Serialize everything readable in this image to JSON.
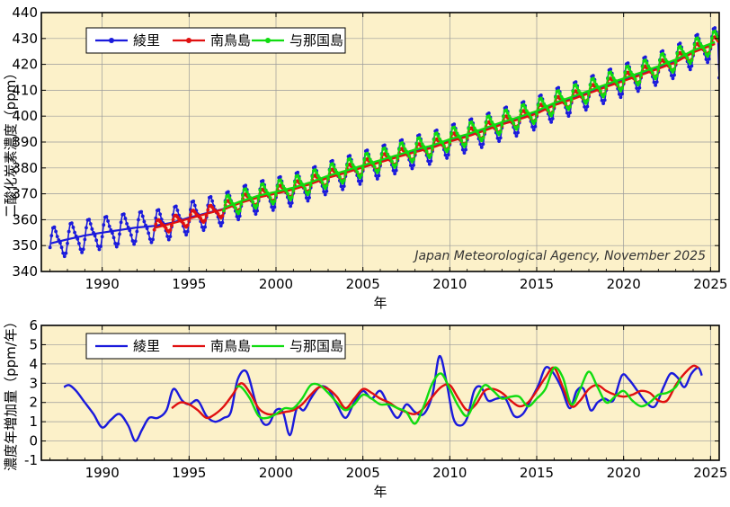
{
  "chart_data": [
    {
      "type": "line",
      "title": "",
      "xlabel": "年",
      "ylabel": "二酸化炭素濃度（ppm）",
      "xlim": [
        1986.5,
        2025.5
      ],
      "ylim": [
        340,
        440
      ],
      "xticks": [
        1990,
        1995,
        2000,
        2005,
        2010,
        2015,
        2020,
        2025
      ],
      "yticks": [
        340,
        350,
        360,
        370,
        380,
        390,
        400,
        410,
        420,
        430,
        440
      ],
      "grid": true,
      "legend_position": "top-left",
      "credit": "Japan Meteorological Agency, November 2025",
      "series": [
        {
          "name": "綾里",
          "color": "#1a1adc",
          "markers": true,
          "trend_start": 1987.0,
          "trend_end": 2025.3,
          "trend_values": [
            [
              1987,
              350.8
            ],
            [
              1988,
              352.4
            ],
            [
              1989,
              353.9
            ],
            [
              1990,
              355.0
            ],
            [
              1991,
              356.0
            ],
            [
              1992,
              357.0
            ],
            [
              1993,
              357.6
            ],
            [
              1994,
              358.8
            ],
            [
              1995,
              360.8
            ],
            [
              1996,
              362.5
            ],
            [
              1997,
              364.2
            ],
            [
              1998,
              366.8
            ],
            [
              1999,
              368.8
            ],
            [
              2000,
              370.2
            ],
            [
              2001,
              371.8
            ],
            [
              2002,
              373.9
            ],
            [
              2003,
              376.4
            ],
            [
              2004,
              378.3
            ],
            [
              2005,
              380.4
            ],
            [
              2006,
              382.4
            ],
            [
              2007,
              384.4
            ],
            [
              2008,
              386.4
            ],
            [
              2009,
              388.0
            ],
            [
              2010,
              390.5
            ],
            [
              2011,
              392.4
            ],
            [
              2012,
              394.6
            ],
            [
              2013,
              397.0
            ],
            [
              2014,
              399.0
            ],
            [
              2015,
              401.4
            ],
            [
              2016,
              404.5
            ],
            [
              2017,
              406.7
            ],
            [
              2018,
              409.1
            ],
            [
              2019,
              411.6
            ],
            [
              2020,
              414.0
            ],
            [
              2021,
              416.3
            ],
            [
              2022,
              418.6
            ],
            [
              2023,
              421.3
            ],
            [
              2024,
              424.9
            ],
            [
              2025,
              427.5
            ]
          ],
          "seasonal_amplitude": 6.5,
          "data_end": 2025.6
        },
        {
          "name": "南鳥島",
          "color": "#e01010",
          "markers": true,
          "trend_start": 1993.0,
          "trend_end": 2025.3,
          "trend_values": [
            [
              1993,
              356.8
            ],
            [
              1994,
              358.5
            ],
            [
              1995,
              360.4
            ],
            [
              1996,
              362.3
            ],
            [
              1997,
              364.0
            ],
            [
              1998,
              366.6
            ],
            [
              1999,
              368.6
            ],
            [
              2000,
              370.1
            ],
            [
              2001,
              371.7
            ],
            [
              2002,
              373.8
            ],
            [
              2003,
              376.2
            ],
            [
              2004,
              378.1
            ],
            [
              2005,
              380.2
            ],
            [
              2006,
              382.2
            ],
            [
              2007,
              384.2
            ],
            [
              2008,
              386.1
            ],
            [
              2009,
              387.8
            ],
            [
              2010,
              390.2
            ],
            [
              2011,
              392.1
            ],
            [
              2012,
              394.4
            ],
            [
              2013,
              396.8
            ],
            [
              2014,
              398.8
            ],
            [
              2015,
              401.0
            ],
            [
              2016,
              404.2
            ],
            [
              2017,
              406.4
            ],
            [
              2018,
              408.8
            ],
            [
              2019,
              411.3
            ],
            [
              2020,
              413.6
            ],
            [
              2021,
              415.9
            ],
            [
              2022,
              418.3
            ],
            [
              2023,
              420.8
            ],
            [
              2024,
              424.6
            ],
            [
              2025,
              427.2
            ]
          ],
          "seasonal_amplitude": 3.0,
          "data_end": 2025.5
        },
        {
          "name": "与那国島",
          "color": "#10dc10",
          "markers": true,
          "trend_start": 1997.0,
          "trend_end": 2025.3,
          "trend_values": [
            [
              1997,
              364.6
            ],
            [
              1998,
              367.2
            ],
            [
              1999,
              369.3
            ],
            [
              2000,
              370.8
            ],
            [
              2001,
              372.4
            ],
            [
              2002,
              374.5
            ],
            [
              2003,
              377.0
            ],
            [
              2004,
              378.9
            ],
            [
              2005,
              381.0
            ],
            [
              2006,
              383.0
            ],
            [
              2007,
              385.0
            ],
            [
              2008,
              387.1
            ],
            [
              2009,
              388.7
            ],
            [
              2010,
              391.1
            ],
            [
              2011,
              393.0
            ],
            [
              2012,
              395.3
            ],
            [
              2013,
              397.7
            ],
            [
              2014,
              399.7
            ],
            [
              2015,
              402.0
            ],
            [
              2016,
              405.1
            ],
            [
              2017,
              407.4
            ],
            [
              2018,
              409.8
            ],
            [
              2019,
              412.3
            ],
            [
              2020,
              414.6
            ],
            [
              2021,
              416.9
            ],
            [
              2022,
              419.3
            ],
            [
              2023,
              421.9
            ],
            [
              2024,
              425.4
            ],
            [
              2025,
              428.0
            ]
          ],
          "seasonal_amplitude": 4.5,
          "data_end": 2025.5
        }
      ]
    },
    {
      "type": "line",
      "title": "",
      "xlabel": "年",
      "ylabel": "濃度年増加量（ppm/年）",
      "xlim": [
        1986.5,
        2025.5
      ],
      "ylim": [
        -1,
        6
      ],
      "xticks": [
        1990,
        1995,
        2000,
        2005,
        2010,
        2015,
        2020,
        2025
      ],
      "yticks": [
        -1,
        0,
        1,
        2,
        3,
        4,
        5,
        6
      ],
      "grid": true,
      "legend_position": "top-left",
      "series": [
        {
          "name": "綾里",
          "color": "#1a1adc",
          "x": [
            1987.8,
            1988.1,
            1988.5,
            1989.0,
            1989.5,
            1990.0,
            1990.5,
            1991.0,
            1991.5,
            1991.9,
            1992.3,
            1992.7,
            1993.2,
            1993.7,
            1994.1,
            1994.6,
            1995.0,
            1995.5,
            1996.0,
            1996.5,
            1997.0,
            1997.4,
            1997.8,
            1998.3,
            1998.8,
            1999.2,
            1999.6,
            2000.0,
            2000.4,
            2000.8,
            2001.2,
            2001.6,
            2002.0,
            2002.5,
            2003.0,
            2003.5,
            2004.0,
            2004.5,
            2005.0,
            2005.5,
            2006.0,
            2006.5,
            2007.0,
            2007.5,
            2008.0,
            2008.5,
            2009.0,
            2009.4,
            2009.8,
            2010.2,
            2010.6,
            2011.0,
            2011.4,
            2011.8,
            2012.2,
            2012.7,
            2013.2,
            2013.7,
            2014.2,
            2014.7,
            2015.1,
            2015.5,
            2015.9,
            2016.4,
            2016.9,
            2017.3,
            2017.7,
            2018.1,
            2018.5,
            2018.9,
            2019.4,
            2019.9,
            2020.3,
            2020.8,
            2021.3,
            2021.8,
            2022.3,
            2022.7,
            2023.1,
            2023.5,
            2023.9,
            2024.3,
            2024.5
          ],
          "values": [
            2.8,
            2.9,
            2.6,
            2.0,
            1.4,
            0.7,
            1.1,
            1.4,
            0.8,
            0.0,
            0.6,
            1.2,
            1.2,
            1.6,
            2.7,
            2.1,
            1.9,
            2.1,
            1.3,
            1.0,
            1.2,
            1.5,
            3.2,
            3.6,
            2.1,
            1.0,
            0.9,
            1.6,
            1.5,
            0.3,
            1.7,
            1.6,
            2.2,
            2.8,
            2.7,
            1.9,
            1.2,
            2.0,
            2.6,
            2.2,
            2.6,
            1.8,
            1.2,
            1.9,
            1.5,
            1.4,
            2.4,
            4.4,
            3.1,
            1.2,
            0.8,
            1.2,
            2.6,
            2.8,
            2.1,
            2.2,
            2.2,
            1.3,
            1.4,
            2.2,
            2.9,
            3.8,
            3.6,
            2.8,
            1.7,
            2.6,
            2.7,
            1.6,
            2.0,
            2.2,
            2.1,
            3.4,
            3.2,
            2.6,
            2.0,
            1.8,
            2.8,
            3.5,
            3.3,
            2.8,
            3.5,
            3.8,
            3.4
          ]
        },
        {
          "name": "南鳥島",
          "color": "#e01010",
          "x": [
            1994.0,
            1994.5,
            1995.0,
            1995.5,
            1996.0,
            1996.5,
            1997.0,
            1997.5,
            1998.0,
            1998.5,
            1999.0,
            1999.5,
            2000.0,
            2000.5,
            2001.0,
            2001.5,
            2002.0,
            2002.5,
            2003.0,
            2003.5,
            2004.0,
            2004.5,
            2005.0,
            2005.5,
            2006.0,
            2006.5,
            2007.0,
            2007.5,
            2008.0,
            2008.5,
            2009.0,
            2009.5,
            2010.0,
            2010.5,
            2011.0,
            2011.5,
            2012.0,
            2012.5,
            2013.0,
            2013.5,
            2014.0,
            2014.5,
            2015.0,
            2015.5,
            2016.0,
            2016.5,
            2017.0,
            2017.5,
            2018.0,
            2018.5,
            2019.0,
            2019.5,
            2020.0,
            2020.5,
            2021.0,
            2021.5,
            2022.0,
            2022.5,
            2023.0,
            2023.5,
            2024.0,
            2024.3
          ],
          "values": [
            1.7,
            2.0,
            1.9,
            1.6,
            1.2,
            1.4,
            1.8,
            2.4,
            3.0,
            2.5,
            1.7,
            1.4,
            1.4,
            1.5,
            1.6,
            1.9,
            2.4,
            2.8,
            2.7,
            2.3,
            1.7,
            2.2,
            2.7,
            2.5,
            2.2,
            2.0,
            1.7,
            1.5,
            1.4,
            1.7,
            2.3,
            2.8,
            2.9,
            2.2,
            1.6,
            1.9,
            2.6,
            2.7,
            2.5,
            2.1,
            1.8,
            2.0,
            2.6,
            3.3,
            3.8,
            2.8,
            1.8,
            2.1,
            2.7,
            2.9,
            2.6,
            2.4,
            2.3,
            2.4,
            2.6,
            2.5,
            2.1,
            2.1,
            2.9,
            3.5,
            3.9,
            3.8
          ]
        },
        {
          "name": "与那国島",
          "color": "#10dc10",
          "x": [
            1997.7,
            1998.0,
            1998.5,
            1999.0,
            1999.5,
            2000.0,
            2000.5,
            2001.0,
            2001.5,
            2002.0,
            2002.5,
            2003.0,
            2003.5,
            2004.0,
            2004.5,
            2005.0,
            2005.5,
            2006.0,
            2006.5,
            2007.0,
            2007.5,
            2008.0,
            2008.5,
            2009.0,
            2009.5,
            2010.0,
            2010.5,
            2011.0,
            2011.5,
            2012.0,
            2012.5,
            2013.0,
            2013.5,
            2014.0,
            2014.5,
            2015.0,
            2015.5,
            2016.0,
            2016.5,
            2017.0,
            2017.5,
            2018.0,
            2018.5,
            2019.0,
            2019.5,
            2020.0,
            2020.5,
            2021.0,
            2021.5,
            2022.0,
            2022.5,
            2023.0,
            2023.3
          ],
          "values": [
            2.8,
            2.8,
            2.2,
            1.3,
            1.2,
            1.4,
            1.7,
            1.7,
            2.2,
            2.9,
            2.9,
            2.5,
            2.0,
            1.6,
            1.9,
            2.4,
            2.2,
            1.9,
            1.9,
            1.7,
            1.5,
            0.9,
            1.8,
            3.0,
            3.5,
            2.7,
            1.8,
            1.3,
            2.2,
            2.9,
            2.6,
            2.2,
            2.3,
            2.3,
            1.8,
            2.2,
            2.7,
            3.8,
            3.3,
            1.9,
            2.7,
            3.6,
            2.8,
            2.0,
            2.3,
            2.6,
            2.1,
            1.8,
            2.0,
            2.4,
            2.5,
            2.8,
            3.3
          ]
        }
      ]
    }
  ]
}
